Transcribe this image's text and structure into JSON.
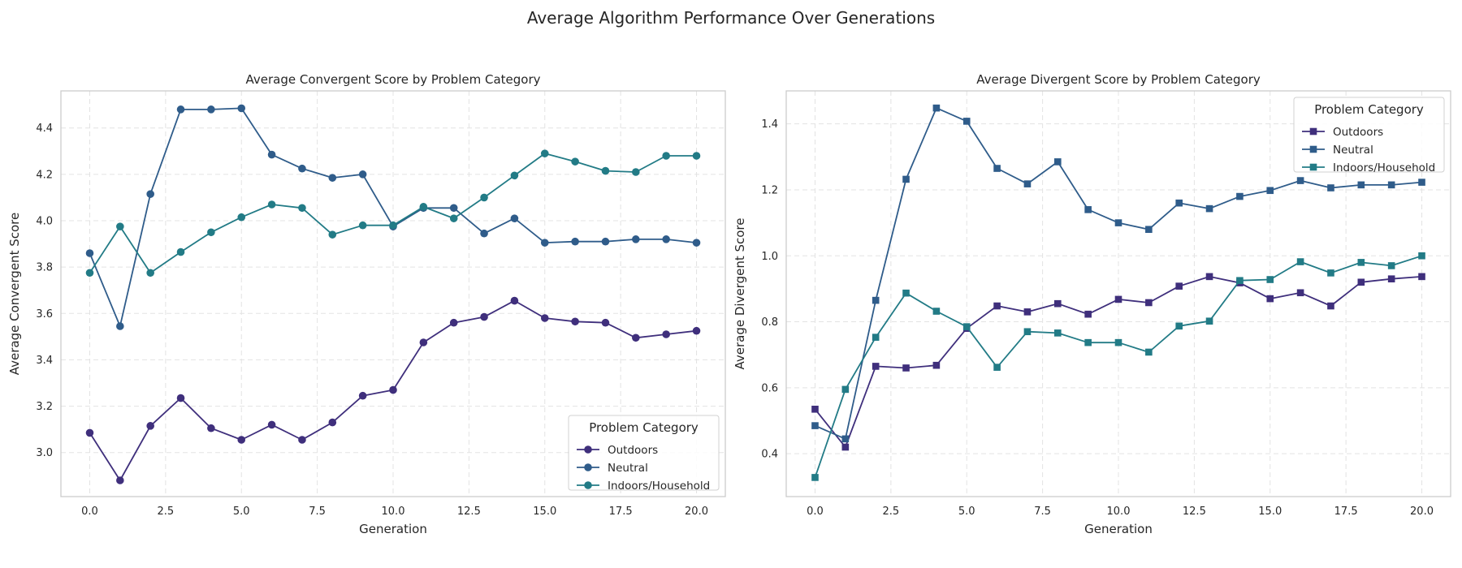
{
  "suptitle": "Average Algorithm Performance Over Generations",
  "chart_data": [
    {
      "type": "line",
      "title": "Average Convergent Score by Problem Category",
      "xlabel": "Generation",
      "ylabel": "Average Convergent Score",
      "xlim": [
        -0.95,
        20.95
      ],
      "ylim": [
        2.81,
        4.56
      ],
      "xticks": [
        0.0,
        2.5,
        5.0,
        7.5,
        10.0,
        12.5,
        15.0,
        17.5,
        20.0
      ],
      "yticks": [
        3.0,
        3.2,
        3.4,
        3.6,
        3.8,
        4.0,
        4.2,
        4.4
      ],
      "tick_decimals": {
        "x": 1,
        "y": 1
      },
      "marker": "circle",
      "grid": true,
      "legend": {
        "title": "Problem Category",
        "placement": "lower right"
      },
      "x": [
        0,
        1,
        2,
        3,
        4,
        5,
        6,
        7,
        8,
        9,
        10,
        11,
        12,
        13,
        14,
        15,
        16,
        17,
        18,
        19,
        20
      ],
      "series": [
        {
          "name": "Outdoors",
          "color": "#3f2f7c",
          "values": [
            3.085,
            2.88,
            3.115,
            3.235,
            3.105,
            3.055,
            3.12,
            3.055,
            3.13,
            3.245,
            3.27,
            3.475,
            3.56,
            3.585,
            3.655,
            3.58,
            3.565,
            3.56,
            3.495,
            3.51,
            3.525
          ]
        },
        {
          "name": "Neutral",
          "color": "#2f5c8a",
          "values": [
            3.86,
            3.545,
            4.115,
            4.48,
            4.48,
            4.485,
            4.285,
            4.225,
            4.185,
            4.2,
            3.975,
            4.055,
            4.055,
            3.945,
            4.01,
            3.905,
            3.91,
            3.91,
            3.92,
            3.92,
            3.905
          ]
        },
        {
          "name": "Indoors/Household",
          "color": "#227b86",
          "values": [
            3.775,
            3.975,
            3.775,
            3.865,
            3.95,
            4.015,
            4.07,
            4.055,
            3.94,
            3.98,
            3.98,
            4.06,
            4.01,
            4.1,
            4.195,
            4.29,
            4.255,
            4.215,
            4.21,
            4.28,
            4.28
          ]
        }
      ]
    },
    {
      "type": "line",
      "title": "Average Divergent Score by Problem Category",
      "xlabel": "Generation",
      "ylabel": "Average Divergent Score",
      "xlim": [
        -0.95,
        20.95
      ],
      "ylim": [
        0.27,
        1.5
      ],
      "xticks": [
        0.0,
        2.5,
        5.0,
        7.5,
        10.0,
        12.5,
        15.0,
        17.5,
        20.0
      ],
      "yticks": [
        0.4,
        0.6,
        0.8,
        1.0,
        1.2,
        1.4
      ],
      "tick_decimals": {
        "x": 1,
        "y": 1
      },
      "marker": "square",
      "grid": true,
      "legend": {
        "title": "Problem Category",
        "placement": "upper right"
      },
      "x": [
        0,
        1,
        2,
        3,
        4,
        5,
        6,
        7,
        8,
        9,
        10,
        11,
        12,
        13,
        14,
        15,
        16,
        17,
        18,
        19,
        20
      ],
      "series": [
        {
          "name": "Outdoors",
          "color": "#3f2f7c",
          "values": [
            0.535,
            0.42,
            0.665,
            0.66,
            0.668,
            0.78,
            0.848,
            0.83,
            0.855,
            0.823,
            0.868,
            0.858,
            0.908,
            0.937,
            0.918,
            0.87,
            0.888,
            0.848,
            0.92,
            0.93,
            0.937
          ]
        },
        {
          "name": "Neutral",
          "color": "#2f5c8a",
          "values": [
            0.485,
            0.445,
            0.865,
            1.232,
            1.448,
            1.408,
            1.265,
            1.218,
            1.285,
            1.14,
            1.1,
            1.08,
            1.16,
            1.143,
            1.18,
            1.198,
            1.228,
            1.206,
            1.215,
            1.215,
            1.223
          ]
        },
        {
          "name": "Indoors/Household",
          "color": "#227b86",
          "values": [
            0.328,
            0.595,
            0.753,
            0.887,
            0.832,
            0.785,
            0.662,
            0.77,
            0.766,
            0.737,
            0.737,
            0.708,
            0.787,
            0.802,
            0.925,
            0.928,
            0.982,
            0.948,
            0.98,
            0.97,
            1.0
          ]
        }
      ]
    }
  ]
}
